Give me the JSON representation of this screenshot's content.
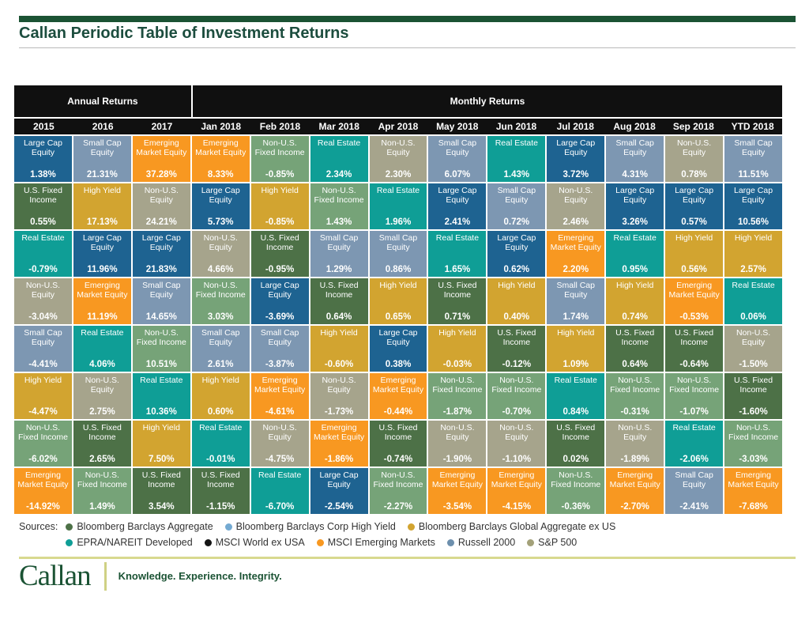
{
  "page": {
    "title": "Callan Periodic Table of Investment Returns"
  },
  "chart_data": {
    "type": "table",
    "title": "Callan Periodic Table of Investment Returns",
    "column_groups": [
      {
        "label": "Annual Returns",
        "span": 3
      },
      {
        "label": "Monthly Returns",
        "span": 10
      }
    ],
    "asset_colors": {
      "Large Cap Equity": "#1e6391",
      "Small Cap Equity": "#7d97b2",
      "Emerging Market Equity": "#f89821",
      "Non-U.S. Equity": "#a6a48c",
      "U.S. Fixed Income": "#4d7147",
      "High Yield": "#d2a430",
      "Non-U.S. Fixed Income": "#76a378",
      "Real Estate": "#0f9e96"
    },
    "columns": [
      {
        "label": "2015",
        "cells": [
          [
            "Large Cap Equity",
            "1.38%"
          ],
          [
            "U.S. Fixed Income",
            "0.55%"
          ],
          [
            "Real Estate",
            "-0.79%"
          ],
          [
            "Non-U.S. Equity",
            "-3.04%"
          ],
          [
            "Small Cap Equity",
            "-4.41%"
          ],
          [
            "High Yield",
            "-4.47%"
          ],
          [
            "Non-U.S. Fixed Income",
            "-6.02%"
          ],
          [
            "Emerging Market Equity",
            "-14.92%"
          ]
        ]
      },
      {
        "label": "2016",
        "cells": [
          [
            "Small Cap Equity",
            "21.31%"
          ],
          [
            "High Yield",
            "17.13%"
          ],
          [
            "Large Cap Equity",
            "11.96%"
          ],
          [
            "Emerging Market Equity",
            "11.19%"
          ],
          [
            "Real Estate",
            "4.06%"
          ],
          [
            "Non-U.S. Equity",
            "2.75%"
          ],
          [
            "U.S. Fixed Income",
            "2.65%"
          ],
          [
            "Non-U.S. Fixed Income",
            "1.49%"
          ]
        ]
      },
      {
        "label": "2017",
        "cells": [
          [
            "Emerging Market Equity",
            "37.28%"
          ],
          [
            "Non-U.S. Equity",
            "24.21%"
          ],
          [
            "Large Cap Equity",
            "21.83%"
          ],
          [
            "Small Cap Equity",
            "14.65%"
          ],
          [
            "Non-U.S. Fixed Income",
            "10.51%"
          ],
          [
            "Real Estate",
            "10.36%"
          ],
          [
            "High Yield",
            "7.50%"
          ],
          [
            "U.S. Fixed Income",
            "3.54%"
          ]
        ]
      },
      {
        "label": "Jan 2018",
        "cells": [
          [
            "Emerging Market Equity",
            "8.33%"
          ],
          [
            "Large Cap Equity",
            "5.73%"
          ],
          [
            "Non-U.S. Equity",
            "4.66%"
          ],
          [
            "Non-U.S. Fixed Income",
            "3.03%"
          ],
          [
            "Small Cap Equity",
            "2.61%"
          ],
          [
            "High Yield",
            "0.60%"
          ],
          [
            "Real Estate",
            "-0.01%"
          ],
          [
            "U.S. Fixed Income",
            "-1.15%"
          ]
        ]
      },
      {
        "label": "Feb 2018",
        "cells": [
          [
            "Non-U.S. Fixed Income",
            "-0.85%"
          ],
          [
            "High Yield",
            "-0.85%"
          ],
          [
            "U.S. Fixed Income",
            "-0.95%"
          ],
          [
            "Large Cap Equity",
            "-3.69%"
          ],
          [
            "Small Cap Equity",
            "-3.87%"
          ],
          [
            "Emerging Market Equity",
            "-4.61%"
          ],
          [
            "Non-U.S. Equity",
            "-4.75%"
          ],
          [
            "Real Estate",
            "-6.70%"
          ]
        ]
      },
      {
        "label": "Mar 2018",
        "cells": [
          [
            "Real Estate",
            "2.34%"
          ],
          [
            "Non-U.S. Fixed Income",
            "1.43%"
          ],
          [
            "Small Cap Equity",
            "1.29%"
          ],
          [
            "U.S. Fixed Income",
            "0.64%"
          ],
          [
            "High Yield",
            "-0.60%"
          ],
          [
            "Non-U.S. Equity",
            "-1.73%"
          ],
          [
            "Emerging Market Equity",
            "-1.86%"
          ],
          [
            "Large Cap Equity",
            "-2.54%"
          ]
        ]
      },
      {
        "label": "Apr 2018",
        "cells": [
          [
            "Non-U.S. Equity",
            "2.30%"
          ],
          [
            "Real Estate",
            "1.96%"
          ],
          [
            "Small Cap Equity",
            "0.86%"
          ],
          [
            "High Yield",
            "0.65%"
          ],
          [
            "Large Cap Equity",
            "0.38%"
          ],
          [
            "Emerging Market Equity",
            "-0.44%"
          ],
          [
            "U.S. Fixed Income",
            "-0.74%"
          ],
          [
            "Non-U.S. Fixed Income",
            "-2.27%"
          ]
        ]
      },
      {
        "label": "May 2018",
        "cells": [
          [
            "Small Cap Equity",
            "6.07%"
          ],
          [
            "Large Cap Equity",
            "2.41%"
          ],
          [
            "Real Estate",
            "1.65%"
          ],
          [
            "U.S. Fixed Income",
            "0.71%"
          ],
          [
            "High Yield",
            "-0.03%"
          ],
          [
            "Non-U.S. Fixed Income",
            "-1.87%"
          ],
          [
            "Non-U.S. Equity",
            "-1.90%"
          ],
          [
            "Emerging Market Equity",
            "-3.54%"
          ]
        ]
      },
      {
        "label": "Jun 2018",
        "cells": [
          [
            "Real Estate",
            "1.43%"
          ],
          [
            "Small Cap Equity",
            "0.72%"
          ],
          [
            "Large Cap Equity",
            "0.62%"
          ],
          [
            "High Yield",
            "0.40%"
          ],
          [
            "U.S. Fixed Income",
            "-0.12%"
          ],
          [
            "Non-U.S. Fixed Income",
            "-0.70%"
          ],
          [
            "Non-U.S. Equity",
            "-1.10%"
          ],
          [
            "Emerging Market Equity",
            "-4.15%"
          ]
        ]
      },
      {
        "label": "Jul 2018",
        "cells": [
          [
            "Large Cap Equity",
            "3.72%"
          ],
          [
            "Non-U.S. Equity",
            "2.46%"
          ],
          [
            "Emerging Market Equity",
            "2.20%"
          ],
          [
            "Small Cap Equity",
            "1.74%"
          ],
          [
            "High Yield",
            "1.09%"
          ],
          [
            "Real Estate",
            "0.84%"
          ],
          [
            "U.S. Fixed Income",
            "0.02%"
          ],
          [
            "Non-U.S. Fixed Income",
            "-0.36%"
          ]
        ]
      },
      {
        "label": "Aug 2018",
        "cells": [
          [
            "Small Cap Equity",
            "4.31%"
          ],
          [
            "Large Cap Equity",
            "3.26%"
          ],
          [
            "Real Estate",
            "0.95%"
          ],
          [
            "High Yield",
            "0.74%"
          ],
          [
            "U.S. Fixed Income",
            "0.64%"
          ],
          [
            "Non-U.S. Fixed Income",
            "-0.31%"
          ],
          [
            "Non-U.S. Equity",
            "-1.89%"
          ],
          [
            "Emerging Market Equity",
            "-2.70%"
          ]
        ]
      },
      {
        "label": "Sep 2018",
        "cells": [
          [
            "Non-U.S. Equity",
            "0.78%"
          ],
          [
            "Large Cap Equity",
            "0.57%"
          ],
          [
            "High Yield",
            "0.56%"
          ],
          [
            "Emerging Market Equity",
            "-0.53%"
          ],
          [
            "U.S. Fixed Income",
            "-0.64%"
          ],
          [
            "Non-U.S. Fixed Income",
            "-1.07%"
          ],
          [
            "Real Estate",
            "-2.06%"
          ],
          [
            "Small Cap Equity",
            "-2.41%"
          ]
        ]
      },
      {
        "label": "YTD 2018",
        "cells": [
          [
            "Small Cap Equity",
            "11.51%"
          ],
          [
            "Large Cap Equity",
            "10.56%"
          ],
          [
            "High Yield",
            "2.57%"
          ],
          [
            "Real Estate",
            "0.06%"
          ],
          [
            "Non-U.S. Equity",
            "-1.50%"
          ],
          [
            "U.S. Fixed Income",
            "-1.60%"
          ],
          [
            "Non-U.S. Fixed Income",
            "-3.03%"
          ],
          [
            "Emerging Market Equity",
            "-7.68%"
          ]
        ]
      }
    ]
  },
  "legend": {
    "sources_label": "Sources:",
    "rows": [
      [
        {
          "label": "Bloomberg Barclays Aggregate",
          "color": "#4d7147"
        },
        {
          "label": "Bloomberg Barclays Corp High Yield",
          "color": "#74aad2"
        },
        {
          "label": "Bloomberg Barclays Global Aggregate ex US",
          "color": "#d2a430"
        }
      ],
      [
        {
          "label": "EPRA/NAREIT Developed",
          "color": "#0f9e96"
        },
        {
          "label": "MSCI World ex USA",
          "color": "#151515"
        },
        {
          "label": "MSCI Emerging Markets",
          "color": "#f89821"
        },
        {
          "label": "Russell 2000",
          "color": "#6d8fad"
        },
        {
          "label": "S&P 500",
          "color": "#a3a179"
        }
      ]
    ]
  },
  "footer": {
    "logo_text": "Callan",
    "tagline": "Knowledge. Experience. Integrity."
  }
}
